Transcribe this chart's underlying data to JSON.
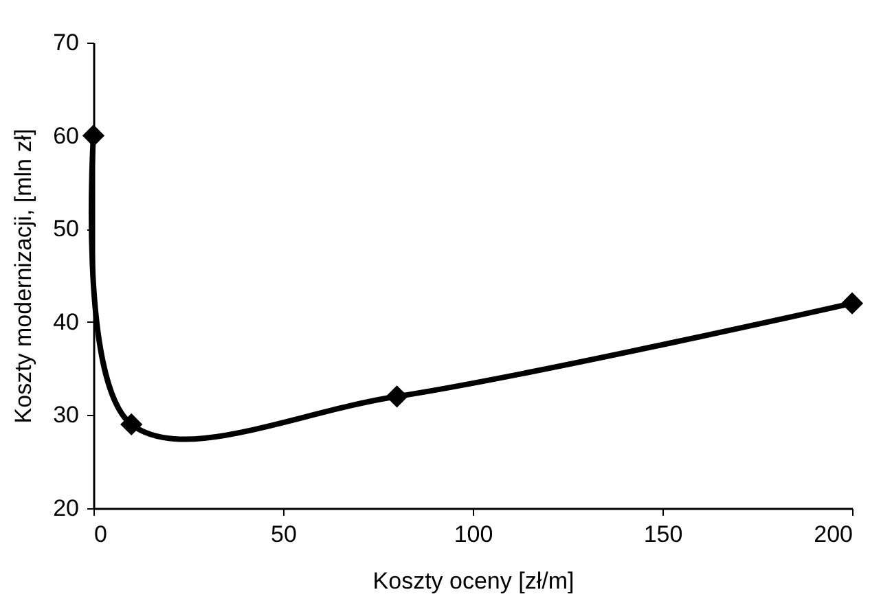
{
  "chart_data": {
    "type": "line",
    "xlabel": "Koszty oceny  [zł/m]",
    "ylabel": "Koszty modernizacji, [mln zł]",
    "x": [
      0,
      10,
      80,
      200
    ],
    "series": [
      {
        "color": "#000000",
        "values": [
          60,
          29,
          32,
          42
        ]
      }
    ],
    "xlim": [
      0,
      200
    ],
    "xticks": [
      0,
      50,
      100,
      150,
      200
    ],
    "ylim": [
      20,
      70
    ],
    "yticks": [
      20,
      30,
      40,
      50,
      60,
      70
    ],
    "grid": false,
    "legend": false,
    "marker": "diamond",
    "line_style": "solid"
  }
}
